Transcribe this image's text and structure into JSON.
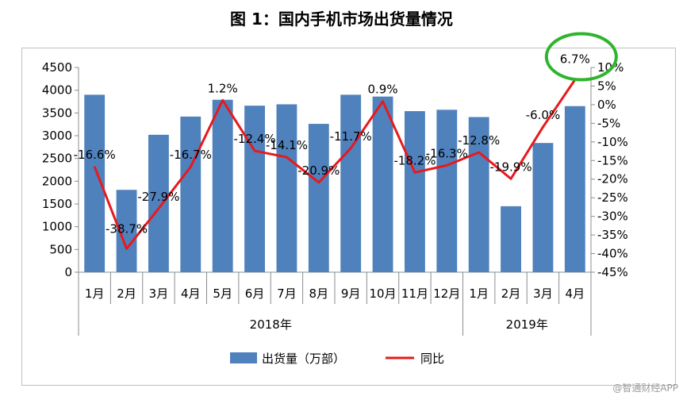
{
  "title": "图 1：国内手机市场出货量情况",
  "watermark": "@智通财经APP",
  "chart_data": {
    "type": "bar",
    "categories": [
      "1月",
      "2月",
      "3月",
      "4月",
      "5月",
      "6月",
      "7月",
      "8月",
      "9月",
      "10月",
      "11月",
      "12月",
      "1月",
      "2月",
      "3月",
      "4月"
    ],
    "year_groups": [
      {
        "label": "2018年",
        "count": 12
      },
      {
        "label": "2019年",
        "count": 4
      }
    ],
    "series": [
      {
        "name": "出货量（万部）",
        "type": "bar",
        "axis": "left",
        "color": "#4f81bd",
        "values": [
          3900,
          1810,
          3020,
          3420,
          3790,
          3660,
          3690,
          3260,
          3900,
          3860,
          3540,
          3570,
          3410,
          1450,
          2840,
          3650
        ]
      },
      {
        "name": "同比",
        "type": "line",
        "axis": "right",
        "color": "#e8191c",
        "values": [
          -16.6,
          -38.7,
          -27.9,
          -16.7,
          1.2,
          -12.4,
          -14.1,
          -20.9,
          -11.7,
          0.9,
          -18.2,
          -16.3,
          -12.8,
          -19.9,
          -6.0,
          6.7
        ],
        "labels": [
          "-16.6%",
          "-38.7%",
          "-27.9%",
          "-16.7%",
          "1.2%",
          "-12.4%",
          "-14.1%",
          "-20.9%",
          "-11.7%",
          "0.9%",
          "-18.2%",
          "-16.3%",
          "-12.8%",
          "-19.9%",
          "-6.0%",
          "6.7%"
        ]
      }
    ],
    "y_left": {
      "min": 0,
      "max": 4500,
      "step": 500,
      "ticks": [
        "0",
        "500",
        "1000",
        "1500",
        "2000",
        "2500",
        "3000",
        "3500",
        "4000",
        "4500"
      ]
    },
    "y_right": {
      "min": -45,
      "max": 10,
      "step": 5,
      "ticks": [
        "-45%",
        "-40%",
        "-35%",
        "-30%",
        "-25%",
        "-20%",
        "-15%",
        "-10%",
        "-5%",
        "0%",
        "5%",
        "10%"
      ]
    },
    "grid": false,
    "legend_position": "bottom",
    "highlight": {
      "index": 15,
      "color": "#2db52d",
      "shape": "ellipse"
    }
  }
}
